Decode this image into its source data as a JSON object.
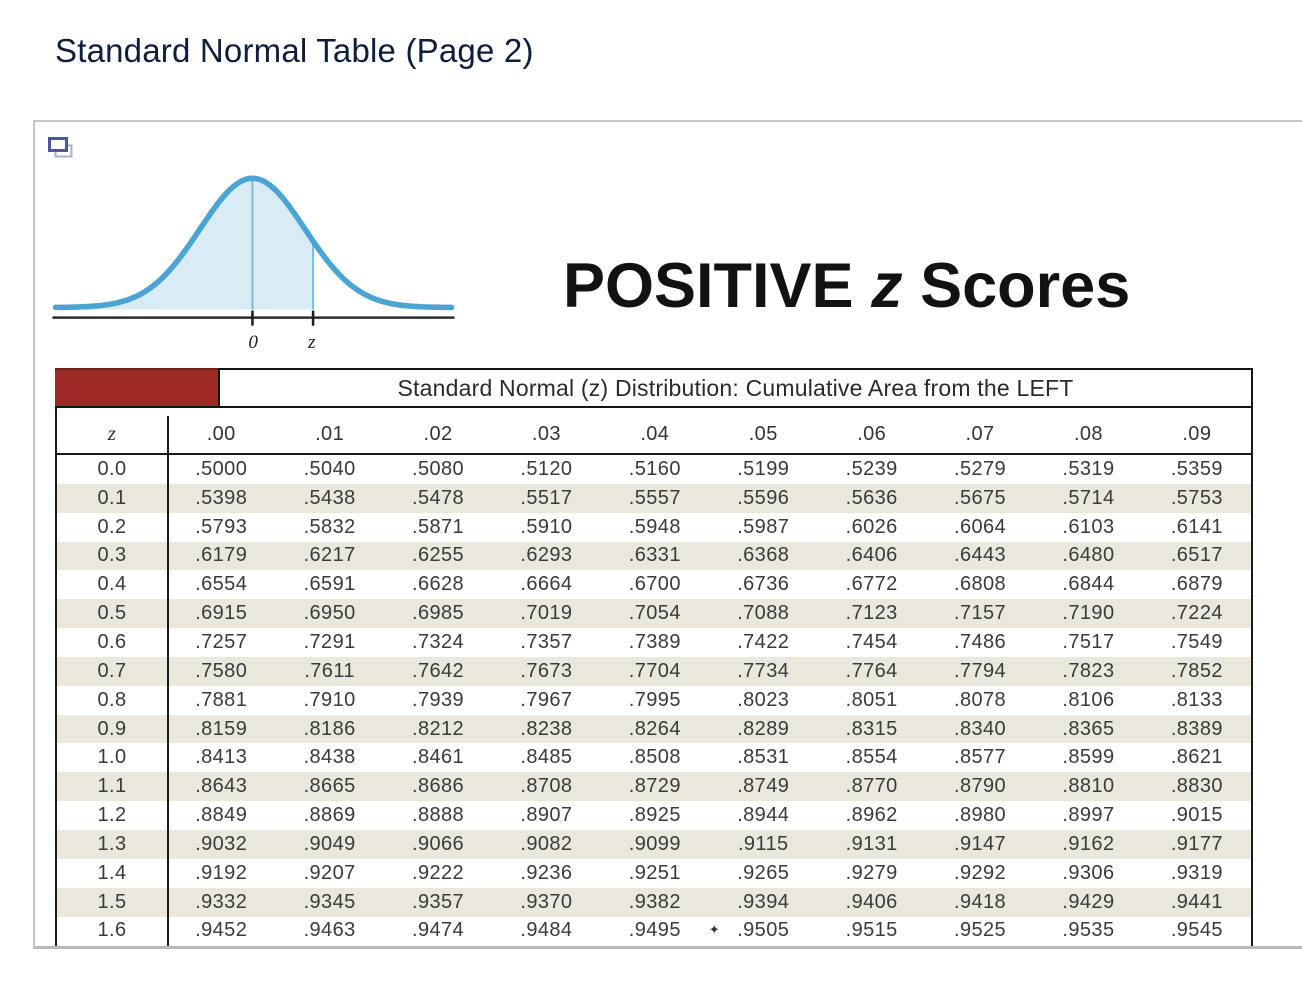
{
  "page_title": "Standard Normal Table (Page 2)",
  "heading": {
    "word1": "POSITIVE",
    "z": "z",
    "word2": "Scores"
  },
  "curve": {
    "label_zero": "0",
    "label_z": "z",
    "description": "standard normal curve with area shaded from the left up to positive z"
  },
  "colors": {
    "title_navy": "#0e1e3c",
    "banner_block_red": "#9d2b23",
    "row_stripe_beige": "#eae8dc",
    "curve_stroke_blue": "#4aa4d4",
    "curve_fill_blue": "#d9ecf6"
  },
  "table": {
    "banner": "Standard Normal (z) Distribution: Cumulative Area from the LEFT",
    "columns": [
      "z",
      ".00",
      ".01",
      ".02",
      ".03",
      ".04",
      ".05",
      ".06",
      ".07",
      ".08",
      ".09"
    ],
    "rows": [
      {
        "z": "0.0",
        "values": [
          ".5000",
          ".5040",
          ".5080",
          ".5120",
          ".5160",
          ".5199",
          ".5239",
          ".5279",
          ".5319",
          ".5359"
        ]
      },
      {
        "z": "0.1",
        "values": [
          ".5398",
          ".5438",
          ".5478",
          ".5517",
          ".5557",
          ".5596",
          ".5636",
          ".5675",
          ".5714",
          ".5753"
        ]
      },
      {
        "z": "0.2",
        "values": [
          ".5793",
          ".5832",
          ".5871",
          ".5910",
          ".5948",
          ".5987",
          ".6026",
          ".6064",
          ".6103",
          ".6141"
        ]
      },
      {
        "z": "0.3",
        "values": [
          ".6179",
          ".6217",
          ".6255",
          ".6293",
          ".6331",
          ".6368",
          ".6406",
          ".6443",
          ".6480",
          ".6517"
        ]
      },
      {
        "z": "0.4",
        "values": [
          ".6554",
          ".6591",
          ".6628",
          ".6664",
          ".6700",
          ".6736",
          ".6772",
          ".6808",
          ".6844",
          ".6879"
        ]
      },
      {
        "z": "0.5",
        "values": [
          ".6915",
          ".6950",
          ".6985",
          ".7019",
          ".7054",
          ".7088",
          ".7123",
          ".7157",
          ".7190",
          ".7224"
        ]
      },
      {
        "z": "0.6",
        "values": [
          ".7257",
          ".7291",
          ".7324",
          ".7357",
          ".7389",
          ".7422",
          ".7454",
          ".7486",
          ".7517",
          ".7549"
        ]
      },
      {
        "z": "0.7",
        "values": [
          ".7580",
          ".7611",
          ".7642",
          ".7673",
          ".7704",
          ".7734",
          ".7764",
          ".7794",
          ".7823",
          ".7852"
        ]
      },
      {
        "z": "0.8",
        "values": [
          ".7881",
          ".7910",
          ".7939",
          ".7967",
          ".7995",
          ".8023",
          ".8051",
          ".8078",
          ".8106",
          ".8133"
        ]
      },
      {
        "z": "0.9",
        "values": [
          ".8159",
          ".8186",
          ".8212",
          ".8238",
          ".8264",
          ".8289",
          ".8315",
          ".8340",
          ".8365",
          ".8389"
        ]
      },
      {
        "z": "1.0",
        "values": [
          ".8413",
          ".8438",
          ".8461",
          ".8485",
          ".8508",
          ".8531",
          ".8554",
          ".8577",
          ".8599",
          ".8621"
        ]
      },
      {
        "z": "1.1",
        "values": [
          ".8643",
          ".8665",
          ".8686",
          ".8708",
          ".8729",
          ".8749",
          ".8770",
          ".8790",
          ".8810",
          ".8830"
        ]
      },
      {
        "z": "1.2",
        "values": [
          ".8849",
          ".8869",
          ".8888",
          ".8907",
          ".8925",
          ".8944",
          ".8962",
          ".8980",
          ".8997",
          ".9015"
        ]
      },
      {
        "z": "1.3",
        "values": [
          ".9032",
          ".9049",
          ".9066",
          ".9082",
          ".9099",
          ".9115",
          ".9131",
          ".9147",
          ".9162",
          ".9177"
        ]
      },
      {
        "z": "1.4",
        "values": [
          ".9192",
          ".9207",
          ".9222",
          ".9236",
          ".9251",
          ".9265",
          ".9279",
          ".9292",
          ".9306",
          ".9319"
        ]
      },
      {
        "z": "1.5",
        "values": [
          ".9332",
          ".9345",
          ".9357",
          ".9370",
          ".9382",
          ".9394",
          ".9406",
          ".9418",
          ".9429",
          ".9441"
        ]
      },
      {
        "z": "1.6",
        "values": [
          ".9452",
          ".9463",
          ".9474",
          ".9484",
          ".9495",
          ".9505",
          ".9515",
          ".9525",
          ".9535",
          ".9545"
        ]
      }
    ],
    "footnote_star": {
      "row": "1.6",
      "after_column": ".04",
      "symbol": "✦"
    }
  }
}
